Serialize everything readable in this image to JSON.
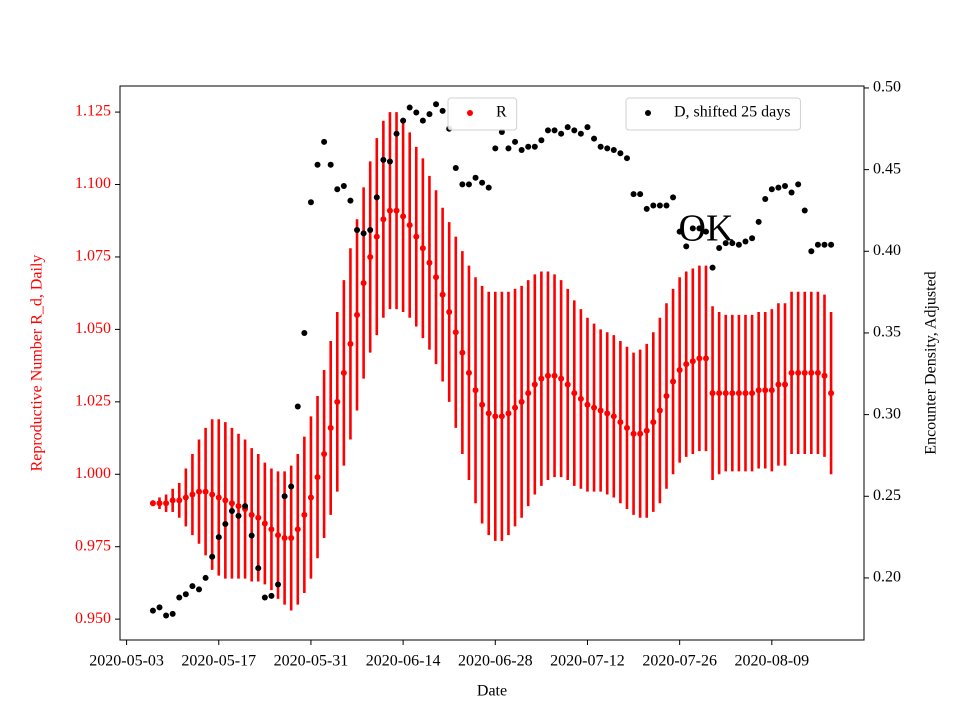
{
  "chart_data": {
    "type": "scatter",
    "x_label": "Date",
    "y_label": "Reproductive Number R_d, Daily",
    "y2_label": "Encounter Density, Adjusted",
    "annotation": "OK",
    "x": [
      "2020-05-07",
      "2020-05-08",
      "2020-05-09",
      "2020-05-10",
      "2020-05-11",
      "2020-05-12",
      "2020-05-13",
      "2020-05-14",
      "2020-05-15",
      "2020-05-16",
      "2020-05-17",
      "2020-05-18",
      "2020-05-19",
      "2020-05-20",
      "2020-05-21",
      "2020-05-22",
      "2020-05-23",
      "2020-05-24",
      "2020-05-25",
      "2020-05-26",
      "2020-05-27",
      "2020-05-28",
      "2020-05-29",
      "2020-05-30",
      "2020-05-31",
      "2020-06-01",
      "2020-06-02",
      "2020-06-03",
      "2020-06-04",
      "2020-06-05",
      "2020-06-06",
      "2020-06-07",
      "2020-06-08",
      "2020-06-09",
      "2020-06-10",
      "2020-06-11",
      "2020-06-12",
      "2020-06-13",
      "2020-06-14",
      "2020-06-15",
      "2020-06-16",
      "2020-06-17",
      "2020-06-18",
      "2020-06-19",
      "2020-06-20",
      "2020-06-21",
      "2020-06-22",
      "2020-06-23",
      "2020-06-24",
      "2020-06-25",
      "2020-06-26",
      "2020-06-27",
      "2020-06-28",
      "2020-06-29",
      "2020-06-30",
      "2020-07-01",
      "2020-07-02",
      "2020-07-03",
      "2020-07-04",
      "2020-07-05",
      "2020-07-06",
      "2020-07-07",
      "2020-07-08",
      "2020-07-09",
      "2020-07-10",
      "2020-07-11",
      "2020-07-12",
      "2020-07-13",
      "2020-07-14",
      "2020-07-15",
      "2020-07-16",
      "2020-07-17",
      "2020-07-18",
      "2020-07-19",
      "2020-07-20",
      "2020-07-21",
      "2020-07-22",
      "2020-07-23",
      "2020-07-24",
      "2020-07-25",
      "2020-07-26",
      "2020-07-27",
      "2020-07-28",
      "2020-07-29",
      "2020-07-30",
      "2020-07-31",
      "2020-08-01",
      "2020-08-02",
      "2020-08-03",
      "2020-08-04",
      "2020-08-05",
      "2020-08-06",
      "2020-08-07",
      "2020-08-08",
      "2020-08-09",
      "2020-08-10",
      "2020-08-11",
      "2020-08-12",
      "2020-08-13",
      "2020-08-14",
      "2020-08-15",
      "2020-08-16",
      "2020-08-17",
      "2020-08-18"
    ],
    "series": [
      {
        "name": "R",
        "color": "#ff0000",
        "axis": "y",
        "legend": "upper center",
        "values": [
          0.99,
          0.99,
          0.99,
          0.991,
          0.991,
          0.992,
          0.993,
          0.994,
          0.994,
          0.993,
          0.992,
          0.991,
          0.99,
          0.989,
          0.988,
          0.986,
          0.985,
          0.983,
          0.981,
          0.979,
          0.978,
          0.978,
          0.981,
          0.986,
          0.992,
          0.999,
          1.007,
          1.016,
          1.025,
          1.035,
          1.045,
          1.055,
          1.066,
          1.075,
          1.082,
          1.088,
          1.091,
          1.091,
          1.089,
          1.086,
          1.082,
          1.078,
          1.073,
          1.068,
          1.062,
          1.056,
          1.049,
          1.042,
          1.035,
          1.029,
          1.024,
          1.021,
          1.02,
          1.02,
          1.021,
          1.023,
          1.025,
          1.028,
          1.031,
          1.033,
          1.034,
          1.034,
          1.033,
          1.031,
          1.028,
          1.026,
          1.024,
          1.023,
          1.022,
          1.021,
          1.02,
          1.018,
          1.016,
          1.014,
          1.014,
          1.015,
          1.018,
          1.022,
          1.027,
          1.032,
          1.036,
          1.038,
          1.039,
          1.04,
          1.04,
          1.028,
          1.028,
          1.028,
          1.028,
          1.028,
          1.028,
          1.028,
          1.029,
          1.029,
          1.029,
          1.031,
          1.031,
          1.035,
          1.035,
          1.035,
          1.035,
          1.035,
          1.034,
          1.028
        ],
        "errors": [
          0.001,
          0.002,
          0.003,
          0.004,
          0.006,
          0.01,
          0.014,
          0.018,
          0.022,
          0.026,
          0.027,
          0.027,
          0.026,
          0.025,
          0.024,
          0.023,
          0.022,
          0.021,
          0.021,
          0.022,
          0.023,
          0.025,
          0.026,
          0.027,
          0.028,
          0.028,
          0.029,
          0.03,
          0.031,
          0.032,
          0.033,
          0.033,
          0.033,
          0.033,
          0.034,
          0.034,
          0.034,
          0.034,
          0.033,
          0.032,
          0.031,
          0.031,
          0.03,
          0.03,
          0.03,
          0.031,
          0.033,
          0.035,
          0.037,
          0.039,
          0.041,
          0.042,
          0.043,
          0.043,
          0.042,
          0.041,
          0.04,
          0.039,
          0.038,
          0.037,
          0.036,
          0.035,
          0.034,
          0.033,
          0.032,
          0.031,
          0.03,
          0.029,
          0.028,
          0.028,
          0.028,
          0.028,
          0.028,
          0.028,
          0.029,
          0.03,
          0.031,
          0.032,
          0.032,
          0.032,
          0.032,
          0.032,
          0.032,
          0.032,
          0.032,
          0.03,
          0.028,
          0.027,
          0.027,
          0.027,
          0.027,
          0.027,
          0.027,
          0.027,
          0.028,
          0.028,
          0.028,
          0.028,
          0.028,
          0.028,
          0.028,
          0.028,
          0.028,
          0.028
        ]
      },
      {
        "name": "D, shifted 25 days",
        "color": "#000000",
        "axis": "y2",
        "legend": "upper right",
        "values": [
          0.18,
          0.182,
          0.177,
          0.178,
          0.188,
          0.19,
          0.195,
          0.193,
          0.2,
          0.213,
          0.225,
          0.233,
          0.241,
          0.238,
          0.244,
          0.226,
          0.206,
          0.188,
          0.189,
          0.196,
          0.25,
          0.256,
          0.305,
          0.35,
          0.43,
          0.453,
          0.467,
          0.453,
          0.438,
          0.44,
          0.431,
          0.413,
          0.411,
          0.413,
          0.433,
          0.456,
          0.455,
          0.472,
          0.48,
          0.488,
          0.485,
          0.48,
          0.484,
          0.49,
          0.486,
          0.475,
          0.451,
          0.441,
          0.441,
          0.445,
          0.442,
          0.439,
          0.463,
          0.473,
          0.463,
          0.467,
          0.462,
          0.464,
          0.464,
          0.468,
          0.474,
          0.474,
          0.472,
          0.476,
          0.474,
          0.472,
          0.476,
          0.469,
          0.464,
          0.463,
          0.462,
          0.46,
          0.457,
          0.435,
          0.435,
          0.426,
          0.428,
          0.428,
          0.428,
          0.433,
          0.412,
          0.403,
          0.414,
          0.414,
          0.412,
          0.39,
          0.402,
          0.405,
          0.405,
          0.404,
          0.406,
          0.408,
          0.418,
          0.432,
          0.438,
          0.439,
          0.44,
          0.436,
          0.441,
          0.425,
          0.4,
          0.404,
          0.404,
          0.404
        ]
      }
    ],
    "xlim": [
      "2020-05-02",
      "2020-08-23"
    ],
    "xticks": [
      "2020-05-03",
      "2020-05-17",
      "2020-05-31",
      "2020-06-14",
      "2020-06-28",
      "2020-07-12",
      "2020-07-26",
      "2020-08-09"
    ],
    "ylim": [
      0.9428,
      1.134
    ],
    "yticks": [
      {
        "value": 0.95,
        "label": "0.950"
      },
      0.975,
      {
        "value": 1.0,
        "label": "1.000"
      },
      1.025,
      {
        "value": 1.05,
        "label": "1.050"
      },
      1.075,
      {
        "value": 1.1,
        "label": "1.100"
      },
      1.125
    ],
    "y2lim": [
      0.162,
      0.5012
    ],
    "y2ticks": [
      {
        "value": 0.2,
        "label": "0.20"
      },
      0.25,
      {
        "value": 0.3,
        "label": "0.30"
      },
      0.35,
      {
        "value": 0.4,
        "label": "0.40"
      },
      0.45,
      {
        "value": 0.5,
        "label": "0.50"
      }
    ]
  }
}
